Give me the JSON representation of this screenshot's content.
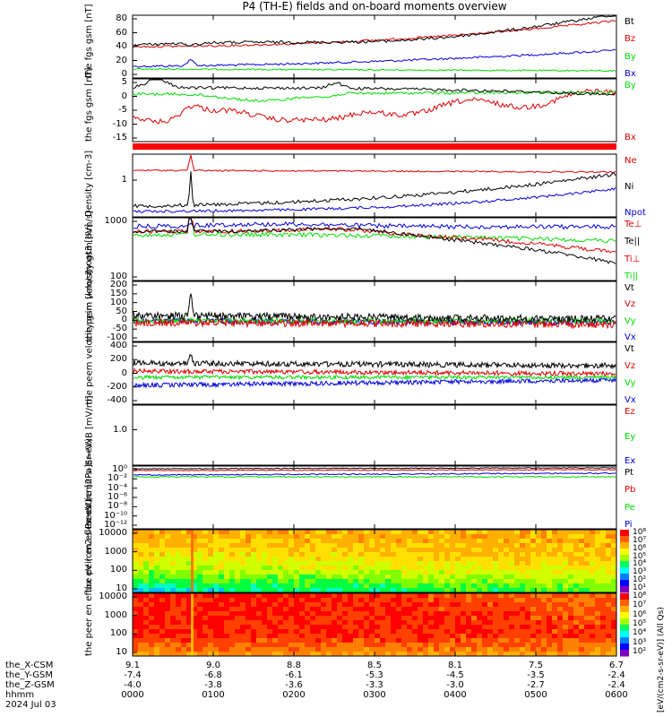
{
  "chart_data": {
    "type": "line",
    "title": "P4 (TH-E) fields and on-board moments overview",
    "date_label": "2024 Jul 03",
    "xaxis": {
      "row_labels": [
        "the_X-CSM",
        "the_Y-GSM",
        "the_Z-GSM",
        "hhmm"
      ],
      "ticks": [
        {
          "values": [
            "9.1",
            "-7.4",
            "-4.0",
            "0000"
          ]
        },
        {
          "values": [
            "9.0",
            "-6.8",
            "-3.8",
            "0100"
          ]
        },
        {
          "values": [
            "8.8",
            "-6.1",
            "-3.6",
            "0200"
          ]
        },
        {
          "values": [
            "8.5",
            "-5.3",
            "-3.3",
            "0300"
          ]
        },
        {
          "values": [
            "8.1",
            "-4.5",
            "-3.0",
            "0400"
          ]
        },
        {
          "values": [
            "7.5",
            "-3.5",
            "-2.7",
            "0500"
          ]
        },
        {
          "values": [
            "6.7",
            "-2.4",
            "-2.4",
            "0600"
          ]
        }
      ]
    },
    "panels": [
      {
        "ylabel": [
          "the",
          "fgs",
          "gsm",
          "[nT]"
        ],
        "yticks": [
          "80",
          "60",
          "40",
          "20",
          "0"
        ],
        "ylim": [
          -8,
          85
        ],
        "legend": [
          {
            "name": "Bt",
            "color": "#000000"
          },
          {
            "name": "Bz",
            "color": "#dd0000"
          },
          {
            "name": "By",
            "color": "#00dd00"
          },
          {
            "name": "Bx",
            "color": "#0000dd"
          }
        ]
      },
      {
        "ylabel": [
          "the",
          "fgs",
          "gsm",
          "[nT]"
        ],
        "yticks": [
          "5",
          "0",
          "-5",
          "-10",
          "-15"
        ],
        "ylim": [
          -20,
          7
        ],
        "legend": [
          {
            "name": "By",
            "color": "#00dd00"
          },
          {
            "name": "Bx",
            "color": "#dd0000"
          }
        ]
      },
      {
        "ylabel": [
          "Density",
          "[cm-3]"
        ],
        "yticks": [
          "1"
        ],
        "legend": [
          {
            "name": "Ne",
            "color": "#dd0000"
          },
          {
            "name": "Ni",
            "color": "#000000"
          },
          {
            "name": "Npot",
            "color": "#0000dd"
          }
        ]
      },
      {
        "ylabel": [
          "moat3",
          "[eV]"
        ],
        "yticks": [
          "1000",
          "100"
        ],
        "legend": [
          {
            "name": "Te⊥",
            "color": "#dd0000"
          },
          {
            "name": "Te||",
            "color": "#000000"
          },
          {
            "name": "Ti⊥",
            "color": "#dd0000"
          },
          {
            "name": "Ti||",
            "color": "#00dd00"
          }
        ]
      },
      {
        "ylabel": [
          "the",
          "peim",
          "velocity",
          "gsm",
          "[km/s]"
        ],
        "yticks": [
          "200",
          "150",
          "100",
          "50",
          "0",
          "-50",
          "-100"
        ],
        "ylim": [
          -100,
          215
        ],
        "legend": [
          {
            "name": "Vt",
            "color": "#000000"
          },
          {
            "name": "Vz",
            "color": "#dd0000"
          },
          {
            "name": "Vy",
            "color": "#00dd00"
          },
          {
            "name": "Vx",
            "color": "#0000dd"
          }
        ]
      },
      {
        "ylabel": [
          "the",
          "peem",
          "velocity",
          "gsm",
          "[km/s]"
        ],
        "yticks": [
          "400",
          "200",
          "0",
          "-200",
          "-400"
        ],
        "ylim": [
          -400,
          400
        ],
        "legend": [
          {
            "name": "Vt",
            "color": "#000000"
          },
          {
            "name": "Vz",
            "color": "#dd0000"
          },
          {
            "name": "Vy",
            "color": "#00dd00"
          },
          {
            "name": "Vx",
            "color": "#0000dd"
          }
        ]
      },
      {
        "ylabel": [
          "E=-VxB",
          "[mV/m]"
        ],
        "yticks": [
          "1.0"
        ],
        "legend": [
          {
            "name": "Ez",
            "color": "#dd0000"
          },
          {
            "name": "Ey",
            "color": "#00dd00"
          },
          {
            "name": "Ex",
            "color": "#0000dd"
          }
        ]
      },
      {
        "ylabel": [
          "Pressure",
          "[nPa]"
        ],
        "yticks": [
          "10⁰",
          "10⁻²",
          "10⁻⁴",
          "10⁻⁶",
          "10⁻⁸",
          "10⁻¹⁰",
          "10⁻¹²"
        ],
        "legend": [
          {
            "name": "Pt",
            "color": "#000000"
          },
          {
            "name": "Pb",
            "color": "#dd0000"
          },
          {
            "name": "Pe",
            "color": "#00dd00"
          },
          {
            "name": "Pi",
            "color": "#0000dd"
          }
        ]
      },
      {
        "ylabel": [
          "the",
          "peir",
          "en",
          "eflux",
          "eV",
          "(cm2-s-",
          "sr-eV)"
        ],
        "yticks": [
          "10000",
          "1000",
          "100",
          "10"
        ],
        "colorbar_ticks": [
          "10⁸",
          "10⁷",
          "10⁶",
          "10⁵",
          "10⁴",
          "10³",
          "10²",
          "10¹"
        ]
      },
      {
        "ylabel": [
          "the",
          "peer",
          "en",
          "eflux",
          "eV",
          "(cm2-s-",
          "sr-eV)"
        ],
        "yticks": [
          "10000",
          "1000",
          "100",
          "10"
        ],
        "colorbar_ticks": [
          "10⁸",
          "10⁷",
          "10⁶",
          "10⁵",
          "10⁴",
          "10³",
          "10²"
        ]
      }
    ],
    "colorbar_title": "[eV/(cm2-s-sr-eV)] (All Qs)"
  }
}
